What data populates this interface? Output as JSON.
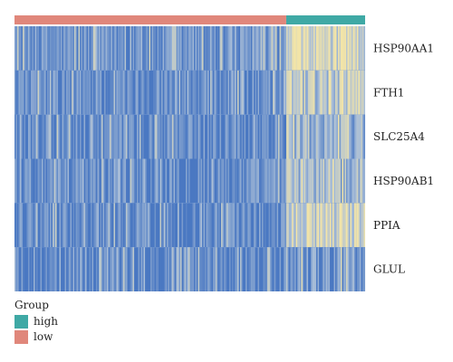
{
  "chart_data": {
    "type": "heatmap",
    "title": "",
    "rows": [
      "HSP90AA1",
      "FTH1",
      "SLC25A4",
      "HSP90AB1",
      "PPIA",
      "GLUL"
    ],
    "groups": [
      {
        "name": "low",
        "fraction": 0.775,
        "color": "#e0877b"
      },
      {
        "name": "high",
        "fraction": 0.225,
        "color": "#3fa9a5"
      }
    ],
    "group_order": [
      "low",
      "high"
    ],
    "row_mean_expression": {
      "low": [
        0.18,
        0.16,
        0.14,
        0.16,
        0.14,
        0.1
      ],
      "high": [
        0.72,
        0.62,
        0.44,
        0.5,
        0.74,
        0.2
      ]
    },
    "colorscale": {
      "low_color": "#4a78c2",
      "mid_color": "#a9bed8",
      "high_color": "#f2e4a8"
    },
    "legend": {
      "title": "Group",
      "entries": [
        {
          "label": "high",
          "color": "#3fa9a5"
        },
        {
          "label": "low",
          "color": "#e0877b"
        }
      ]
    }
  }
}
